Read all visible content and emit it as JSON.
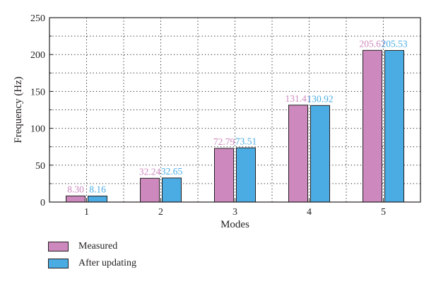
{
  "chart_data": {
    "type": "bar",
    "categories": [
      "1",
      "2",
      "3",
      "4",
      "5"
    ],
    "series": [
      {
        "name": "Measured",
        "values": [
          8.3,
          32.24,
          72.79,
          131.41,
          205.67
        ],
        "labels": [
          "8.30",
          "32.24",
          "72.79",
          "131.41",
          "205.67"
        ],
        "color": "#cd88be"
      },
      {
        "name": "After updating",
        "values": [
          8.16,
          32.65,
          73.51,
          130.92,
          205.53
        ],
        "labels": [
          "8.16",
          "32.65",
          "73.51",
          "130.92",
          "205.53"
        ],
        "color": "#4aace3"
      }
    ],
    "xlabel": "Modes",
    "ylabel": "Frequency (Hz)",
    "ylim": [
      0,
      250
    ],
    "yticks": [
      "0",
      "50",
      "100",
      "150",
      "200",
      "250"
    ],
    "grid": true,
    "legend_position": "bottom-left"
  }
}
